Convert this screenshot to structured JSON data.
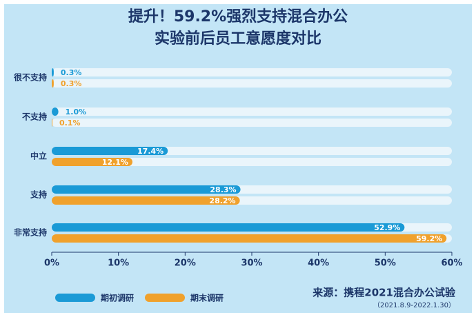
{
  "chart_data": {
    "type": "bar",
    "orientation": "horizontal",
    "title": "提升！59.2%强烈支持混合办公",
    "subtitle": "实验前后员工意愿度对比",
    "categories": [
      "很不支持",
      "不支持",
      "中立",
      "支持",
      "非常支持"
    ],
    "series": [
      {
        "name": "期初调研",
        "color": "#1a9ad6",
        "values": [
          0.3,
          1.0,
          17.4,
          28.3,
          52.9
        ],
        "value_labels": [
          "0.3%",
          "1.0%",
          "17.4%",
          "28.3%",
          "52.9%"
        ]
      },
      {
        "name": "期末调研",
        "color": "#f0a12c",
        "values": [
          0.3,
          0.1,
          12.1,
          28.2,
          59.2
        ],
        "value_labels": [
          "0.3%",
          "0.1%",
          "12.1%",
          "28.2%",
          "59.2%"
        ]
      }
    ],
    "xlim": [
      0,
      60
    ],
    "xticks": [
      {
        "value": 0,
        "label": "0%"
      },
      {
        "value": 10,
        "label": "10%"
      },
      {
        "value": 20,
        "label": "20%"
      },
      {
        "value": 30,
        "label": "30%"
      },
      {
        "value": 40,
        "label": "40%"
      },
      {
        "value": 50,
        "label": "50%"
      },
      {
        "value": 60,
        "label": "60%"
      }
    ],
    "source": "来源：携程2021混合办公试验",
    "source_note": "（2021.8.9-2022.1.30）"
  }
}
